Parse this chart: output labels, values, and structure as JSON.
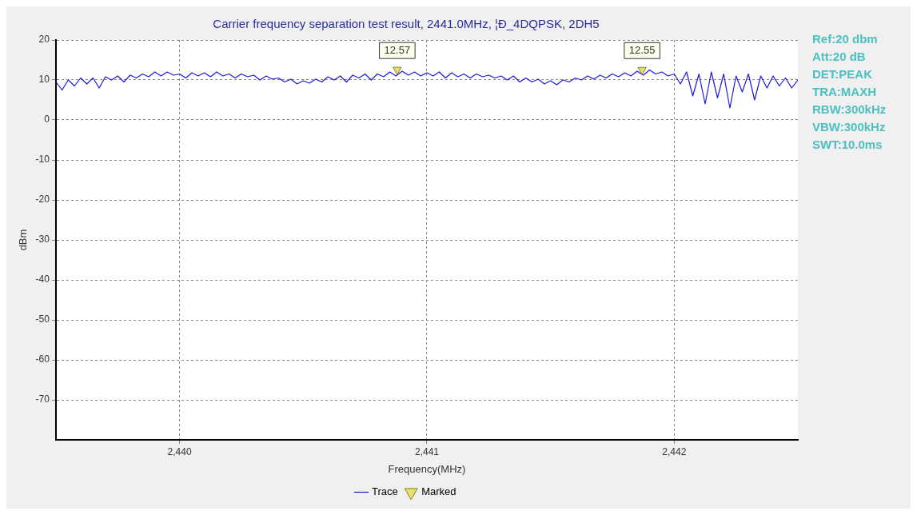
{
  "chart_data": {
    "type": "line",
    "title": "Carrier frequency separation test result, 2441.0MHz, ¦Ð_4DQPSK, 2DH5",
    "xlabel": "Frequency(MHz)",
    "ylabel": "dBm",
    "xlim": [
      2439.5,
      2442.5
    ],
    "xticks": [
      {
        "value": 2440,
        "label": "2,440"
      },
      {
        "value": 2441,
        "label": "2,441"
      },
      {
        "value": 2442,
        "label": "2,442"
      }
    ],
    "ylim": [
      -80,
      20
    ],
    "yticks": [
      -70,
      -60,
      -50,
      -40,
      -30,
      -20,
      -10,
      0,
      10,
      20
    ],
    "grid": true,
    "legend": "bottom",
    "annotations": [
      "Ref:20 dbm",
      "Att:20 dB",
      "DET:PEAK",
      "TRA:MAXH",
      "RBW:300kHz",
      "VBW:300kHz",
      "SWT:10.0ms"
    ],
    "series": [
      {
        "name": "Trace",
        "color": "#1a1ad8",
        "marker": "none",
        "line_style": "solid",
        "x": [
          2439.5,
          2439.525,
          2439.55,
          2439.575,
          2439.6,
          2439.625,
          2439.65,
          2439.675,
          2439.7,
          2439.725,
          2439.75,
          2439.775,
          2439.8,
          2439.825,
          2439.85,
          2439.875,
          2439.9,
          2439.925,
          2439.95,
          2439.975,
          2440,
          2440.025,
          2440.05,
          2440.075,
          2440.1,
          2440.125,
          2440.15,
          2440.175,
          2440.2,
          2440.225,
          2440.25,
          2440.275,
          2440.3,
          2440.325,
          2440.35,
          2440.375,
          2440.4,
          2440.425,
          2440.45,
          2440.475,
          2440.5,
          2440.525,
          2440.55,
          2440.575,
          2440.6,
          2440.625,
          2440.65,
          2440.675,
          2440.7,
          2440.725,
          2440.75,
          2440.775,
          2440.8,
          2440.825,
          2440.85,
          2440.875,
          2440.9,
          2440.925,
          2440.95,
          2440.975,
          2441,
          2441.025,
          2441.05,
          2441.075,
          2441.1,
          2441.125,
          2441.15,
          2441.175,
          2441.2,
          2441.225,
          2441.25,
          2441.275,
          2441.3,
          2441.325,
          2441.35,
          2441.375,
          2441.4,
          2441.425,
          2441.45,
          2441.475,
          2441.5,
          2441.525,
          2441.55,
          2441.575,
          2441.6,
          2441.625,
          2441.65,
          2441.675,
          2441.7,
          2441.725,
          2441.75,
          2441.775,
          2441.8,
          2441.825,
          2441.85,
          2441.875,
          2441.9,
          2441.925,
          2441.95,
          2441.975,
          2442,
          2442.025,
          2442.05,
          2442.075,
          2442.1,
          2442.125,
          2442.15,
          2442.175,
          2442.2,
          2442.225,
          2442.25,
          2442.275,
          2442.3,
          2442.325,
          2442.35,
          2442.375,
          2442.4,
          2442.425,
          2442.45,
          2442.475,
          2442.5
        ],
        "values": [
          9.5,
          7.5,
          10,
          8.5,
          10.5,
          9,
          10.5,
          8,
          10.8,
          10,
          11,
          9.5,
          11.2,
          10.5,
          11.5,
          10.8,
          12,
          11,
          12,
          11.2,
          11.5,
          10.5,
          11.8,
          11,
          11.8,
          10.8,
          12,
          11,
          11.5,
          10.5,
          11.5,
          10.8,
          11.2,
          10,
          11,
          10.2,
          10.5,
          9.5,
          10.2,
          9,
          9.8,
          9.2,
          10.2,
          9.5,
          10.8,
          10,
          11,
          9.5,
          11.2,
          10.5,
          11.5,
          10,
          11.5,
          10.8,
          12,
          11,
          12.2,
          11.2,
          12,
          11,
          11.8,
          11,
          12,
          10.5,
          11.8,
          10.8,
          11.5,
          10.5,
          11.5,
          10.8,
          11.2,
          10.5,
          11,
          10,
          11,
          9.5,
          10.5,
          9.5,
          10.2,
          9,
          9.8,
          8.8,
          10,
          9.5,
          10.5,
          10,
          11,
          10.2,
          11.2,
          10.5,
          11.5,
          10.8,
          11.8,
          11,
          12.2,
          11.2,
          12.5,
          11.5,
          12,
          11,
          11.5,
          9,
          12,
          6,
          11.5,
          4,
          12,
          5.5,
          11.5,
          3,
          11,
          7,
          11.5,
          5,
          11,
          8,
          11,
          8.5,
          10.5,
          8,
          10
        ]
      },
      {
        "name": "Marked",
        "type": "scatter",
        "color": "#e8e070",
        "marker": "triangle",
        "x": [
          2440.88,
          2441.87
        ],
        "values": [
          12.57,
          12.55
        ],
        "value_labels": [
          "12.57",
          "12.55"
        ]
      }
    ]
  }
}
